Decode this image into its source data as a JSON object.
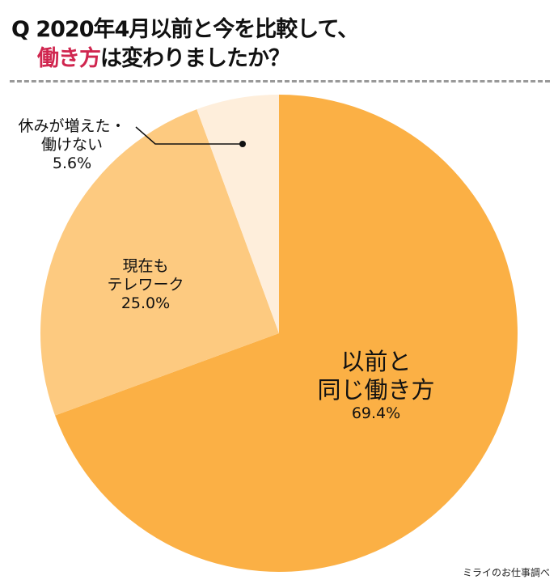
{
  "chart_data": {
    "type": "pie",
    "title_line1": "Q 2020年4月以前と今を比較して、",
    "title_line2_highlight": "働き方",
    "title_line2_rest": "は変わりましたか？",
    "start": "12 o'clock, clockwise",
    "slices": [
      {
        "label_lines": [
          "以前と",
          "同じ働き方"
        ],
        "value": 69.4,
        "value_label": "69.4%",
        "color": "#fbb045"
      },
      {
        "label_lines": [
          "現在も",
          "テレワーク"
        ],
        "value": 25.0,
        "value_label": "25.0%",
        "color": "#fdca80"
      },
      {
        "label_lines": [
          "休みが増えた・",
          "働けない"
        ],
        "value": 5.6,
        "value_label": "5.6%",
        "color": "#feeedb"
      }
    ],
    "highlight_color": "#d0264f"
  },
  "source": "ミライのお仕事調べ"
}
